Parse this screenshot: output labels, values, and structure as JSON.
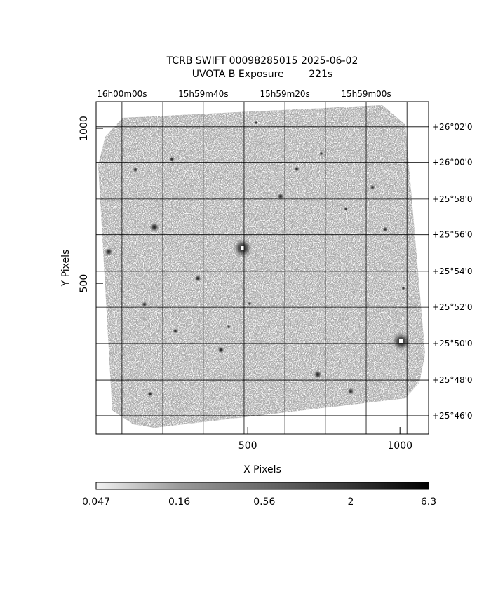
{
  "chart_data": {
    "type": "image",
    "title": "TCRB SWIFT 00098285015 2025-06-02",
    "subtitle": "UVOTA B Exposure        221s",
    "x_label": "X Pixels",
    "y_label": "Y Pixels",
    "xlim": [
      2,
      1094
    ],
    "ylim": [
      14,
      1086
    ],
    "xticks": [
      500,
      1000
    ],
    "yticks": [
      500,
      1000
    ],
    "grid": true,
    "ra_ticks": [
      {
        "value": 87,
        "label": "16h00m00s"
      },
      {
        "value": 354,
        "label": "15h59m40s"
      },
      {
        "value": 622,
        "label": "15h59m20s"
      },
      {
        "value": 889,
        "label": "15h59m00s"
      }
    ],
    "ra_grid": [
      221,
      488,
      755,
      1023
    ],
    "dec_ticks": [
      {
        "value": 1005,
        "label": "+26°02'0"
      },
      {
        "value": 890,
        "label": "+26°00'0"
      },
      {
        "value": 772,
        "label": "+25°58'0"
      },
      {
        "value": 657,
        "label": "+25°56'0"
      },
      {
        "value": 539,
        "label": "+25°54'0"
      },
      {
        "value": 423,
        "label": "+25°52'0"
      },
      {
        "value": 306,
        "label": "+25°50'0"
      },
      {
        "value": 188,
        "label": "+25°48'0"
      },
      {
        "value": 73,
        "label": "+25°46'0"
      }
    ],
    "colorbar": {
      "log": true,
      "lim": [
        0.047,
        6.3
      ],
      "ticks": [
        0.047,
        0.16,
        0.56,
        2,
        6.3
      ]
    }
  }
}
